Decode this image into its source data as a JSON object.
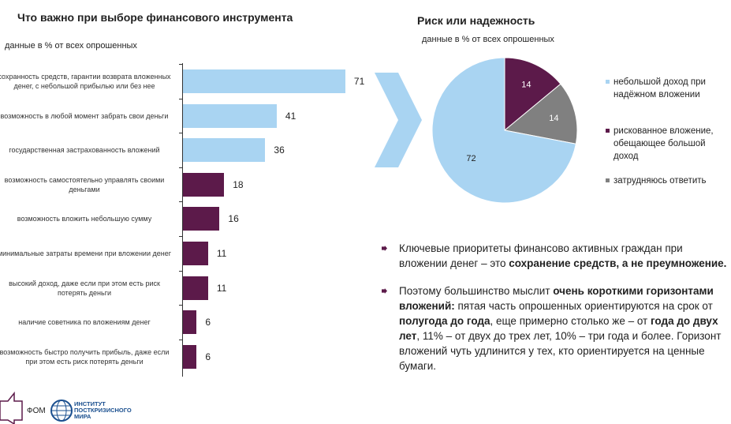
{
  "chart_data": [
    {
      "type": "bar",
      "orientation": "horizontal",
      "title": "Что важно при выборе финансового инструмента",
      "subtitle": "данные в % от всех опрошенных",
      "categories": [
        "сохранность средств, гарантии возврата вложенных денег, с небольшой прибылью или без нее",
        "возможность в любой момент забрать свои деньги",
        "государственная застрахованность вложений",
        "возможность самостоятельно управлять своими деньгами",
        "возможность вложить небольшую сумму",
        "минимальные затраты времени при вложении денег",
        "высокий доход, даже если при этом есть риск потерять деньги",
        "наличие советника по вложениям денег",
        "возможность быстро получить прибыль, даже если при этом есть риск потерять деньги"
      ],
      "values": [
        71,
        41,
        36,
        18,
        16,
        11,
        11,
        6,
        6
      ],
      "colors": [
        "#a9d4f2",
        "#a9d4f2",
        "#a9d4f2",
        "#5c1a4a",
        "#5c1a4a",
        "#5c1a4a",
        "#5c1a4a",
        "#5c1a4a",
        "#5c1a4a"
      ],
      "xlim": [
        0,
        80
      ]
    },
    {
      "type": "pie",
      "title": "Риск или надежность",
      "subtitle": "данные в % от всех опрошенных",
      "slices": [
        {
          "label": "рискованное вложение, обещающее большой доход",
          "value": 14,
          "color": "#5c1a4a"
        },
        {
          "label": "затрудняюсь ответить",
          "value": 14,
          "color": "#808080"
        },
        {
          "label": "небольшой доход при надёжном вложении",
          "value": 72,
          "color": "#a9d4f2"
        }
      ],
      "legend": [
        "небольшой доход при надёжном вложении",
        "рискованное вложение, обещающее большой доход",
        "затрудняюсь ответить"
      ],
      "legend_placement": "right"
    }
  ],
  "text": {
    "p1": [
      "Ключевые приоритеты финансово активных граждан при вложении денег – это ",
      "сохранение средств, а не преумножение."
    ],
    "p2": [
      "Поэтому большинство мыслит ",
      "очень короткими горизонтами вложений:",
      " пятая часть опрошенных ориентируются на срок от ",
      "полугода до года",
      ", еще примерно столько же – от ",
      "года до двух лет",
      ", 11% – от двух до трех лет, 10% – три года и более. Горизонт вложений чуть удлинится у тех, кто ориентируется на ценные бумаги."
    ]
  },
  "footer": {
    "fom": "ФОМ",
    "institute": "ИНСТИТУТ ПОСТКРИЗИСНОГО МИРА"
  }
}
